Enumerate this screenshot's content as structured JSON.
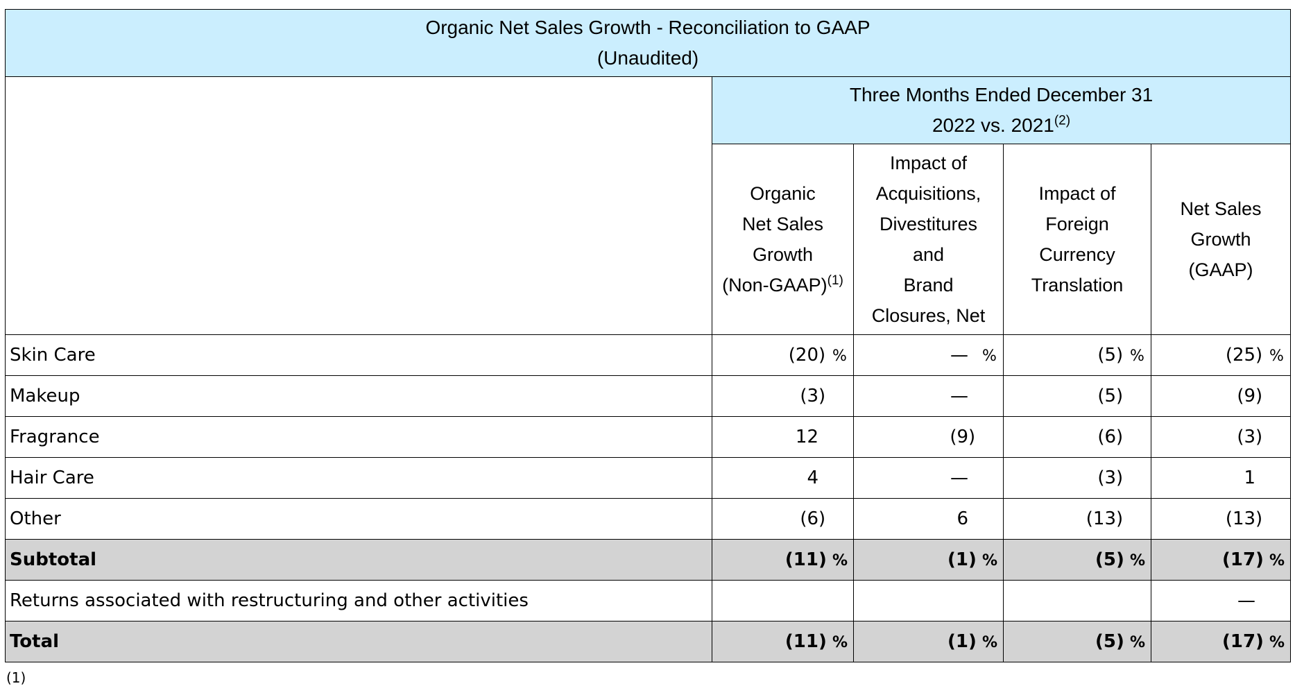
{
  "title": {
    "line1": "Organic Net Sales Growth - Reconciliation to GAAP",
    "line2": "(Unaudited)"
  },
  "period": {
    "line1": "Three Months Ended December 31",
    "line2": "2022 vs. 2021",
    "footnote_ref": "(2)"
  },
  "columns": [
    {
      "lines": [
        "Organic",
        "Net Sales",
        "Growth",
        "(Non-GAAP)"
      ],
      "footnote_ref": "(1)"
    },
    {
      "lines": [
        "Impact of",
        "Acquisitions,",
        "Divestitures",
        "and",
        "Brand",
        "Closures, Net"
      ],
      "footnote_ref": ""
    },
    {
      "lines": [
        "Impact of",
        "Foreign",
        "Currency",
        "Translation"
      ],
      "footnote_ref": ""
    },
    {
      "lines": [
        "Net Sales",
        "Growth",
        "(GAAP)"
      ],
      "footnote_ref": ""
    }
  ],
  "rows": [
    {
      "label": "Skin Care",
      "bold": false,
      "cells": [
        {
          "v": "(20",
          "c": ")",
          "p": "%"
        },
        {
          "v": "—",
          "c": "",
          "p": "%"
        },
        {
          "v": "(5",
          "c": ")",
          "p": "%"
        },
        {
          "v": "(25",
          "c": ")",
          "p": "%"
        }
      ]
    },
    {
      "label": "Makeup",
      "bold": false,
      "cells": [
        {
          "v": "(3",
          "c": ")",
          "p": ""
        },
        {
          "v": "—",
          "c": "",
          "p": ""
        },
        {
          "v": "(5",
          "c": ")",
          "p": ""
        },
        {
          "v": "(9",
          "c": ")",
          "p": ""
        }
      ]
    },
    {
      "label": "Fragrance",
      "bold": false,
      "cells": [
        {
          "v": "12",
          "c": "",
          "p": ""
        },
        {
          "v": "(9",
          "c": ")",
          "p": ""
        },
        {
          "v": "(6",
          "c": ")",
          "p": ""
        },
        {
          "v": "(3",
          "c": ")",
          "p": ""
        }
      ]
    },
    {
      "label": "Hair Care",
      "bold": false,
      "cells": [
        {
          "v": "4",
          "c": "",
          "p": ""
        },
        {
          "v": "—",
          "c": "",
          "p": ""
        },
        {
          "v": "(3",
          "c": ")",
          "p": ""
        },
        {
          "v": "1",
          "c": "",
          "p": ""
        }
      ]
    },
    {
      "label": "Other",
      "bold": false,
      "cells": [
        {
          "v": "(6",
          "c": ")",
          "p": ""
        },
        {
          "v": "6",
          "c": "",
          "p": ""
        },
        {
          "v": "(13",
          "c": ")",
          "p": ""
        },
        {
          "v": "(13",
          "c": ")",
          "p": ""
        }
      ]
    },
    {
      "label": "Subtotal",
      "bold": true,
      "cells": [
        {
          "v": "(11",
          "c": ")",
          "p": "%"
        },
        {
          "v": "(1",
          "c": ")",
          "p": "%"
        },
        {
          "v": "(5",
          "c": ")",
          "p": "%"
        },
        {
          "v": "(17",
          "c": ")",
          "p": "%"
        }
      ]
    },
    {
      "label": "Returns associated with restructuring and other activities",
      "bold": false,
      "cells": [
        {
          "v": "",
          "c": "",
          "p": ""
        },
        {
          "v": "",
          "c": "",
          "p": ""
        },
        {
          "v": "",
          "c": "",
          "p": ""
        },
        {
          "v": "—",
          "c": "",
          "p": ""
        }
      ]
    },
    {
      "label": "Total",
      "bold": true,
      "cells": [
        {
          "v": "(11",
          "c": ")",
          "p": "%"
        },
        {
          "v": "(1",
          "c": ")",
          "p": "%"
        },
        {
          "v": "(5",
          "c": ")",
          "p": "%"
        },
        {
          "v": "(17",
          "c": ")",
          "p": "%"
        }
      ]
    }
  ],
  "footnote_partial": "(1)"
}
